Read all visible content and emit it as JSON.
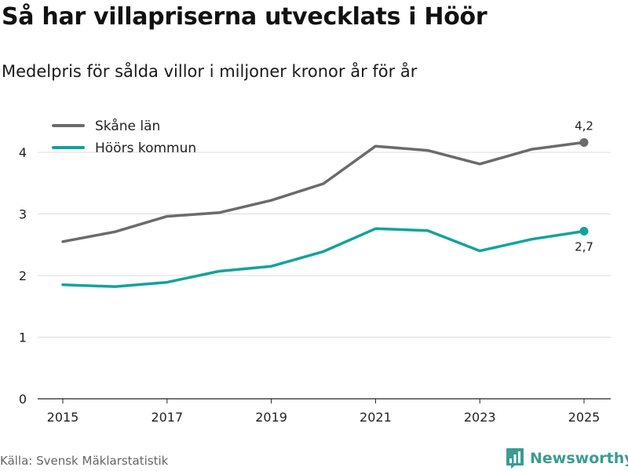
{
  "title": "Så har villapriserna utvecklats i Höör",
  "subtitle": "Medelpris för sålda villor i miljoner kronor år för år",
  "source": "Källa: Svensk Mäklarstatistik",
  "brand": {
    "name": "Newsworthy",
    "icon": "newsworthy-logo-icon",
    "color": "#3a9c92"
  },
  "chart_data": {
    "type": "line",
    "title": "Så har villapriserna utvecklats i Höör",
    "subtitle": "Medelpris för sålda villor i miljoner kronor år för år",
    "xlabel": "",
    "ylabel": "",
    "x": [
      2015,
      2016,
      2017,
      2018,
      2019,
      2020,
      2021,
      2022,
      2023,
      2024,
      2025
    ],
    "xticks": [
      "2015",
      "2017",
      "2019",
      "2021",
      "2023",
      "2025"
    ],
    "xlim": [
      2015,
      2025
    ],
    "yticks": [
      "0",
      "1",
      "2",
      "3",
      "4"
    ],
    "ylim": [
      0,
      4
    ],
    "grid": true,
    "legend": "top-left",
    "series": [
      {
        "name": "Skåne län",
        "color": "#6b6b6b",
        "values": [
          2.55,
          2.71,
          2.96,
          3.02,
          3.22,
          3.49,
          4.1,
          4.03,
          3.81,
          4.05,
          4.16
        ],
        "end_label": "4,2"
      },
      {
        "name": "Höörs kommun",
        "color": "#12a39a",
        "values": [
          1.85,
          1.82,
          1.89,
          2.07,
          2.15,
          2.39,
          2.76,
          2.73,
          2.4,
          2.59,
          2.72
        ],
        "end_label": "2,7"
      }
    ]
  }
}
